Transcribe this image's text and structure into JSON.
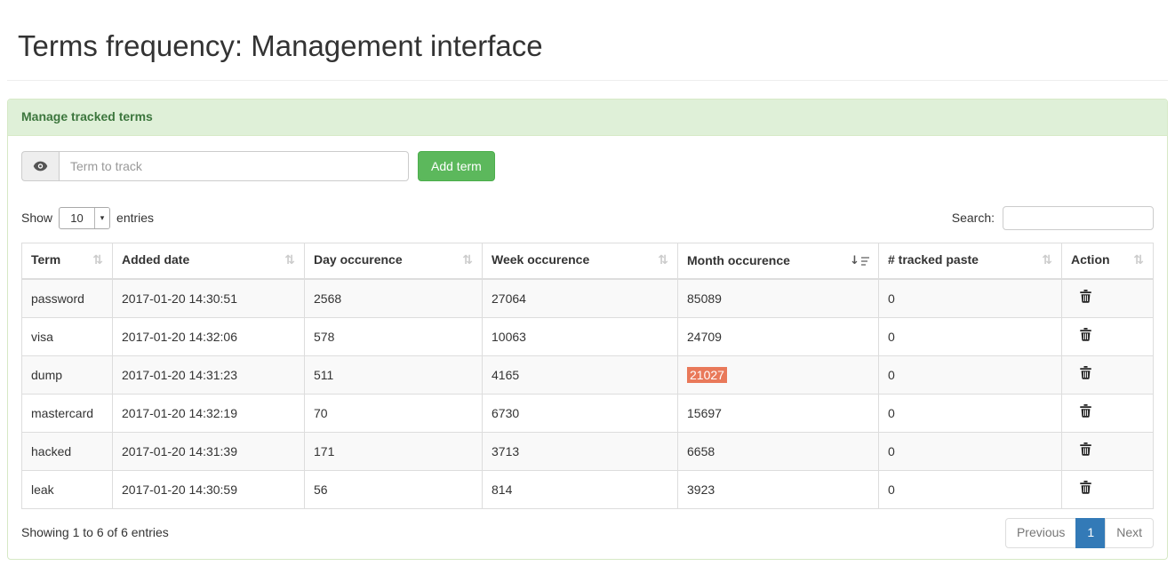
{
  "page": {
    "title": "Terms frequency: Management interface"
  },
  "panel": {
    "title": "Manage tracked terms"
  },
  "add_term": {
    "placeholder": "Term to track",
    "button_label": "Add term"
  },
  "table_controls": {
    "show_label": "Show",
    "entries_label": "entries",
    "page_length_value": "10",
    "search_label": "Search:",
    "search_value": ""
  },
  "table": {
    "columns": [
      "Term",
      "Added date",
      "Day occurence",
      "Week occurence",
      "Month occurence",
      "# tracked paste",
      "Action"
    ],
    "sorted_column": "Month occurence",
    "sort_direction": "descending",
    "rows": [
      {
        "term": "password",
        "added_date": "2017-01-20 14:30:51",
        "day": "2568",
        "week": "27064",
        "month": "85089",
        "tracked_paste": "0"
      },
      {
        "term": "visa",
        "added_date": "2017-01-20 14:32:06",
        "day": "578",
        "week": "10063",
        "month": "24709",
        "tracked_paste": "0"
      },
      {
        "term": "dump",
        "added_date": "2017-01-20 14:31:23",
        "day": "511",
        "week": "4165",
        "month": "21027",
        "tracked_paste": "0",
        "month_highlighted": true
      },
      {
        "term": "mastercard",
        "added_date": "2017-01-20 14:32:19",
        "day": "70",
        "week": "6730",
        "month": "15697",
        "tracked_paste": "0"
      },
      {
        "term": "hacked",
        "added_date": "2017-01-20 14:31:39",
        "day": "171",
        "week": "3713",
        "month": "6658",
        "tracked_paste": "0"
      },
      {
        "term": "leak",
        "added_date": "2017-01-20 14:30:59",
        "day": "56",
        "week": "814",
        "month": "3923",
        "tracked_paste": "0"
      }
    ]
  },
  "footer": {
    "info": "Showing 1 to 6 of 6 entries",
    "pagination": {
      "previous_label": "Previous",
      "current_page": "1",
      "next_label": "Next"
    }
  },
  "icons": {
    "input_addon": "eye-icon",
    "sort_unsorted_glyph": "⇅",
    "sort_desc_glyph": "↓",
    "select_arrow_glyph": "▾",
    "row_action": "trash-icon"
  },
  "colors": {
    "panel_header_bg": "#dff0d8",
    "panel_header_text": "#3c763d",
    "panel_border": "#d6e9c6",
    "button_bg": "#5cb85c",
    "button_border": "#4cae4c",
    "highlight_bg": "#e9795a",
    "pagination_active_bg": "#337ab7",
    "table_border": "#dddddd",
    "stripe_bg": "#f9f9f9"
  }
}
